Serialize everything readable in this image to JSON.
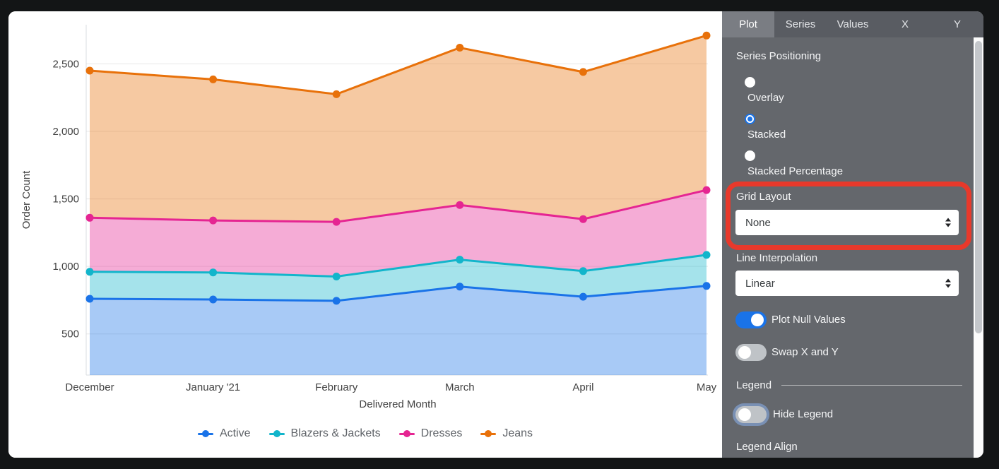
{
  "chart_data": {
    "type": "area",
    "stacked": true,
    "title": "",
    "xlabel": "Delivered Month",
    "ylabel": "Order Count",
    "x_categories": [
      "December",
      "January '21",
      "February",
      "March",
      "April",
      "May"
    ],
    "series": [
      {
        "name": "Active",
        "color": "#1A73E8",
        "values": [
          760,
          755,
          745,
          850,
          775,
          855
        ]
      },
      {
        "name": "Blazers & Jackets",
        "color": "#12B5CB",
        "values": [
          200,
          200,
          180,
          200,
          190,
          230
        ]
      },
      {
        "name": "Dresses",
        "color": "#E52592",
        "values": [
          400,
          385,
          405,
          405,
          385,
          480
        ]
      },
      {
        "name": "Jeans",
        "color": "#E8710A",
        "values": [
          1090,
          1045,
          945,
          1165,
          1090,
          1145
        ]
      }
    ],
    "stacked_totals": [
      2450,
      2385,
      2275,
      2620,
      2440,
      2710
    ],
    "y_ticks": [
      500,
      1000,
      1500,
      2000,
      2500
    ],
    "y_tick_labels": [
      "500",
      "1,000",
      "1,500",
      "2,000",
      "2,500"
    ],
    "ylim": [
      195,
      2790
    ],
    "grid": true,
    "legend_position": "bottom",
    "area_fill_opacity": 0.38
  },
  "panel": {
    "tabs": [
      {
        "label": "Plot",
        "active": true
      },
      {
        "label": "Series",
        "active": false
      },
      {
        "label": "Values",
        "active": false
      },
      {
        "label": "X",
        "active": false
      },
      {
        "label": "Y",
        "active": false
      }
    ],
    "series_positioning": {
      "label": "Series Positioning",
      "options": [
        {
          "label": "Overlay",
          "selected": false
        },
        {
          "label": "Stacked",
          "selected": true
        },
        {
          "label": "Stacked Percentage",
          "selected": false
        }
      ]
    },
    "grid_layout": {
      "label": "Grid Layout",
      "value": "None"
    },
    "line_interpolation": {
      "label": "Line Interpolation",
      "value": "Linear"
    },
    "plot_null_values": {
      "label": "Plot Null Values",
      "on": true
    },
    "swap_x_y": {
      "label": "Swap X and Y",
      "on": false
    },
    "legend": {
      "header": "Legend",
      "hide_legend": {
        "label": "Hide Legend",
        "on": false
      },
      "align_label": "Legend Align"
    }
  },
  "annotation": {
    "type": "highlight-box",
    "color": "#E8392B",
    "target": "grid-layout-section"
  },
  "colors": {
    "accent_blue": "#1A73E8",
    "panel_bg": "#64676C",
    "tabbar_bg": "#595C62",
    "active_tab_bg": "#7A7D83",
    "toggle_off_track": "#BFC3C7",
    "grid_line": "#E8E8E8",
    "axis_line": "#DADCE0",
    "tick_text": "#424242",
    "legend_text": "#5F6368",
    "annotation_red": "#E8392B"
  }
}
